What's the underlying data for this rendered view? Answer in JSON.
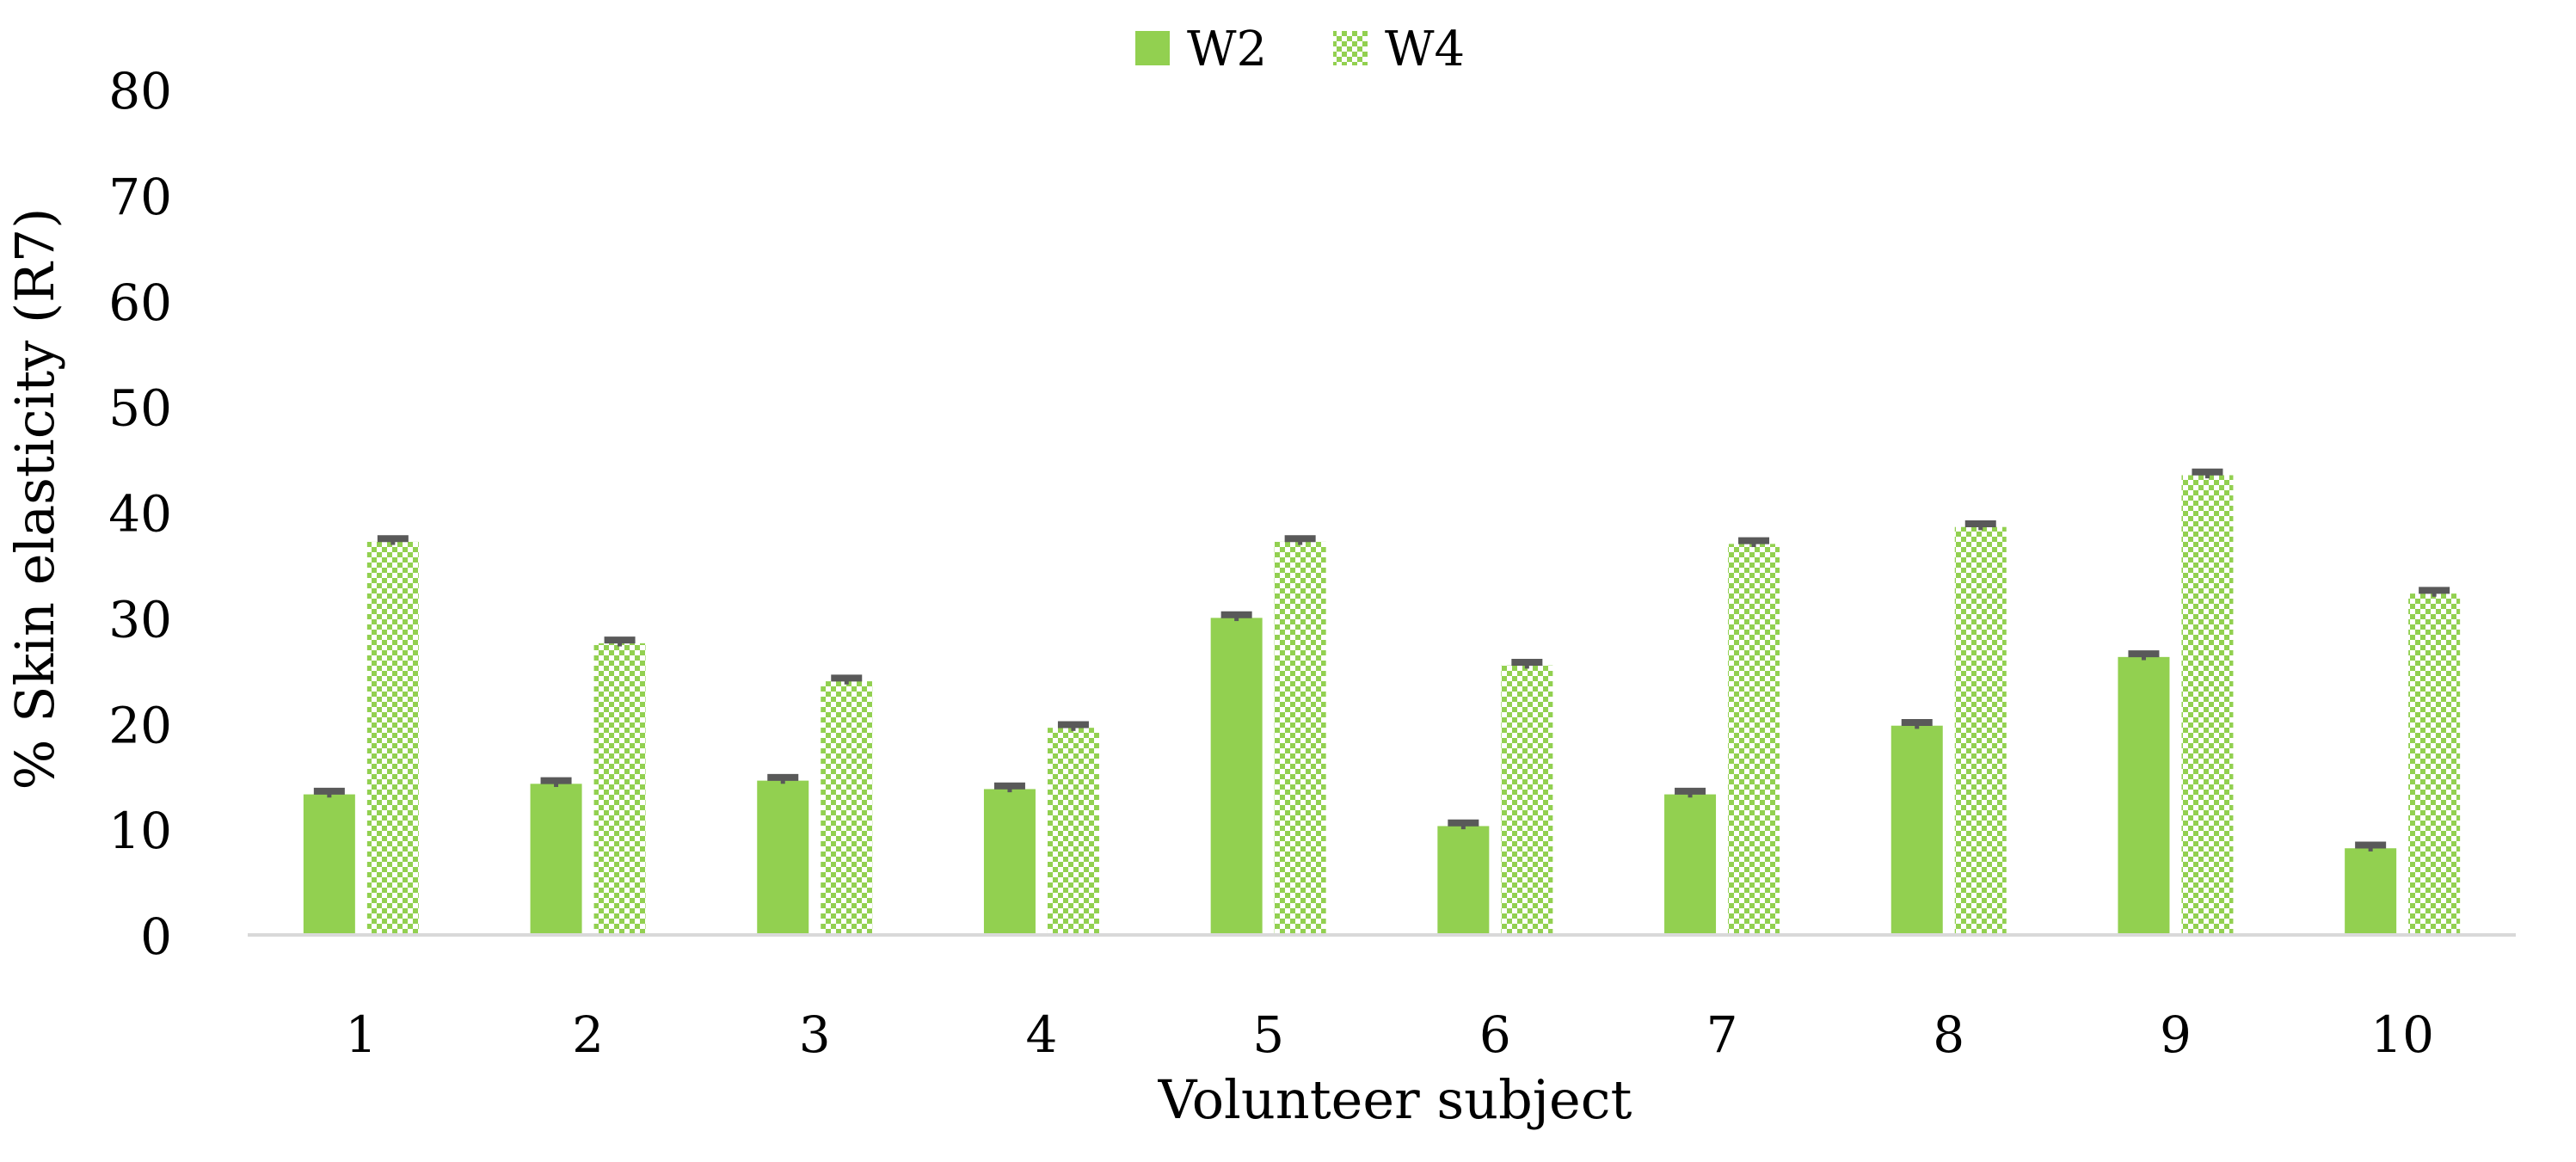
{
  "chart_data": {
    "type": "bar",
    "title": "",
    "xlabel": "Volunteer subject",
    "ylabel": "% Skin elasticity (R7)",
    "categories": [
      "1",
      "2",
      "3",
      "4",
      "5",
      "6",
      "7",
      "8",
      "9",
      "10"
    ],
    "series": [
      {
        "name": "W2",
        "values": [
          13.3,
          14.3,
          14.6,
          13.8,
          30.0,
          10.3,
          13.3,
          19.8,
          26.3,
          8.2
        ],
        "error": [
          0.3,
          0.3,
          0.3,
          0.3,
          0.3,
          0.3,
          0.3,
          0.3,
          0.3,
          0.3
        ],
        "color": "#92D050",
        "pattern": "solid"
      },
      {
        "name": "W4",
        "values": [
          37.2,
          27.6,
          24.0,
          19.6,
          37.2,
          25.5,
          37.0,
          38.6,
          43.5,
          32.3
        ],
        "error": [
          0.3,
          0.3,
          0.3,
          0.3,
          0.3,
          0.3,
          0.3,
          0.3,
          0.3,
          0.3
        ],
        "color": "#92D050",
        "pattern": "checker"
      }
    ],
    "ylim": [
      0,
      80
    ],
    "yticks": [
      0,
      10,
      20,
      30,
      40,
      50,
      60,
      70,
      80
    ],
    "grid": false,
    "legend_position": "top",
    "error_bar_color": "#595959",
    "axis_color": "#D9D9D9"
  }
}
